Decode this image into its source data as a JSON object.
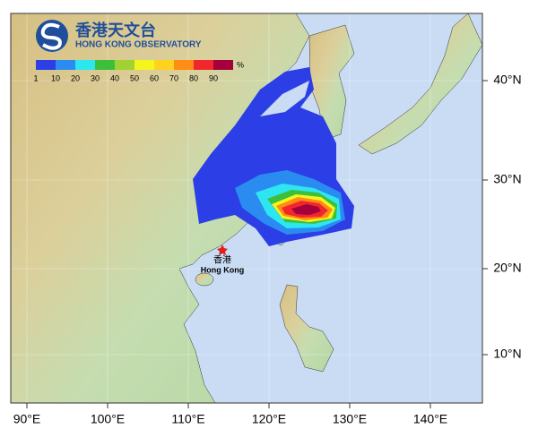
{
  "header": {
    "title": "香港天文台",
    "subtitle": "HONG KONG OBSERVATORY"
  },
  "legend": {
    "unit": "%",
    "items": [
      {
        "label": "1",
        "color": "#2c3ee6"
      },
      {
        "label": "10",
        "color": "#2a8cf0"
      },
      {
        "label": "20",
        "color": "#2ee6f0"
      },
      {
        "label": "30",
        "color": "#3cc03c"
      },
      {
        "label": "40",
        "color": "#a0d232"
      },
      {
        "label": "50",
        "color": "#f5f51e"
      },
      {
        "label": "60",
        "color": "#ffd21e"
      },
      {
        "label": "70",
        "color": "#ff8c14"
      },
      {
        "label": "80",
        "color": "#f0282d"
      },
      {
        "label": "90",
        "color": "#a5003c"
      }
    ]
  },
  "longitude_labels": [
    "90°E",
    "100°E",
    "110°E",
    "120°E",
    "130°E",
    "140°E"
  ],
  "latitude_labels": [
    "40°N",
    "30°N",
    "20°N",
    "10°N"
  ],
  "place": {
    "name_zh": "香港",
    "name_en": "Hong Kong"
  }
}
